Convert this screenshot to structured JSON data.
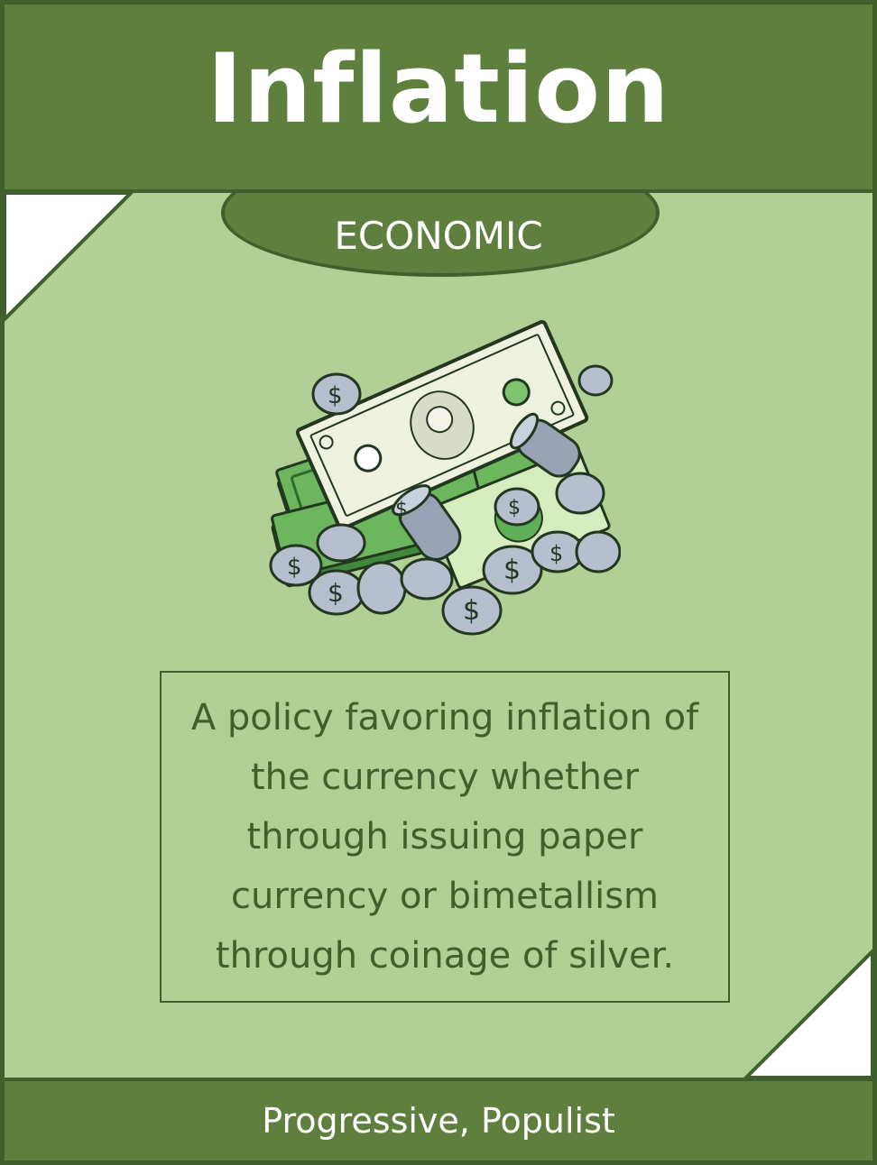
{
  "card": {
    "title": "Inflation",
    "category": "ECONOMIC",
    "description": "A policy favoring inflation of the currency whether through issuing paper currency or bimetallism through coinage of silver.",
    "tags": "Progressive, Populist",
    "illustration": "money-pile-icon"
  },
  "colors": {
    "header": "#5f7f3f",
    "border": "#3f5f2c",
    "background": "#b0d095",
    "text_on_header": "#ffffff",
    "description_text": "#3f5f2c"
  }
}
